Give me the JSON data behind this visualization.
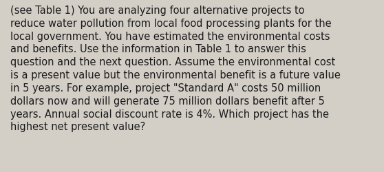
{
  "lines": [
    "(see Table 1) You are analyzing four alternative projects to",
    "reduce water pollution from local food processing plants for the",
    "local government. You have estimated the environmental costs",
    "and benefits. Use the information in Table 1 to answer this",
    "question and the next question. Assume the environmental cost",
    "is a present value but the environmental benefit is a future value",
    "in 5 years. For example, project \"Standard A\" costs 50 million",
    "dollars now and will generate 75 million dollars benefit after 5",
    "years. Annual social discount rate is 4%. Which project has the",
    "highest net present value?"
  ],
  "background_color": "#d3cfc7",
  "text_color": "#1a1a1a",
  "font_size": 10.5,
  "font_family": "DejaVu Sans",
  "fig_width": 5.58,
  "fig_height": 2.51,
  "dpi": 100
}
